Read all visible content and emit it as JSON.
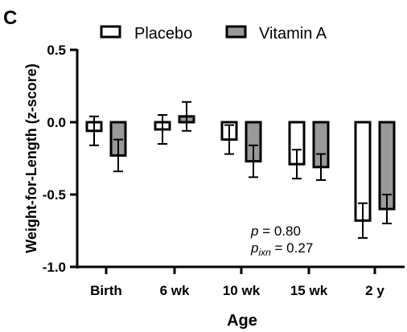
{
  "panel_label": "C",
  "chart_data": {
    "type": "bar",
    "categories": [
      "Birth",
      "6 wk",
      "10 wk",
      "15 wk",
      "2 y"
    ],
    "series": [
      {
        "name": "Placebo",
        "color": "#ffffff",
        "values": [
          -0.06,
          -0.05,
          -0.12,
          -0.29,
          -0.68
        ],
        "err": [
          0.1,
          0.1,
          0.1,
          0.1,
          0.12
        ]
      },
      {
        "name": "Vitamin A",
        "color": "#999999",
        "values": [
          -0.23,
          0.04,
          -0.27,
          -0.31,
          -0.6
        ],
        "err": [
          0.11,
          0.1,
          0.11,
          0.09,
          0.1
        ]
      }
    ],
    "xlabel": "Age",
    "ylabel": "Weight-for-Length (z-score)",
    "ylim": [
      -1.0,
      0.5
    ],
    "yticks": [
      {
        "v": 0.5,
        "label": "0.5"
      },
      {
        "v": 0.0,
        "label": "0.0"
      },
      {
        "v": -0.5,
        "label": "-0.5"
      },
      {
        "v": -1.0,
        "label": "-1.0"
      }
    ],
    "legend_position": "top",
    "grid": false,
    "annotations": {
      "p_symbol": "p",
      "p_value": " = 0.80",
      "pixn_symbol": "p",
      "pixn_subscript": "ixn",
      "pixn_value": " = 0.27"
    }
  }
}
